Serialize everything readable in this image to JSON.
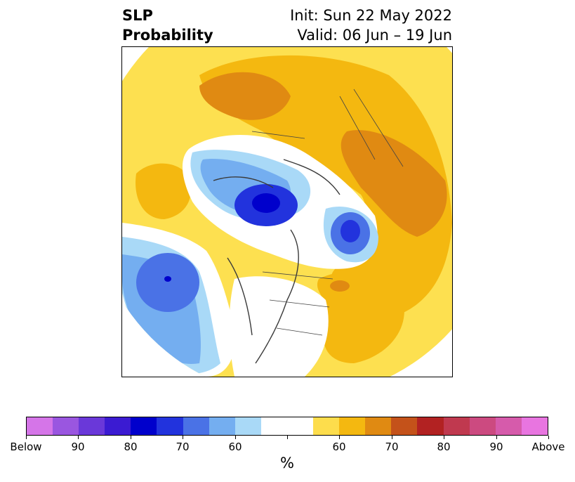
{
  "header": {
    "title_line1": "SLP",
    "title_line2": "Probability",
    "init_text": "Init: Sun 22 May 2022",
    "valid_text": "Valid: 06 Jun – 19 Jun"
  },
  "colorbar": {
    "colors": [
      "#d575e8",
      "#9a56e0",
      "#6a38d9",
      "#3b1bd2",
      "#0000cc",
      "#2233dd",
      "#4a72e6",
      "#74aef0",
      "#a9d9f7",
      "#ffffff",
      "#ffffff",
      "#fddd4c",
      "#f4b810",
      "#e08a12",
      "#c4521a",
      "#b22222",
      "#c0394f",
      "#cc4a80",
      "#d65bab",
      "#e875e0"
    ],
    "tick_labels": [
      "Below",
      "90",
      "80",
      "70",
      "60",
      "",
      "60",
      "70",
      "80",
      "90",
      "Above"
    ],
    "unit": "%"
  },
  "map": {
    "projection": "north polar stereographic",
    "variable": "sea level pressure tercile probability"
  }
}
